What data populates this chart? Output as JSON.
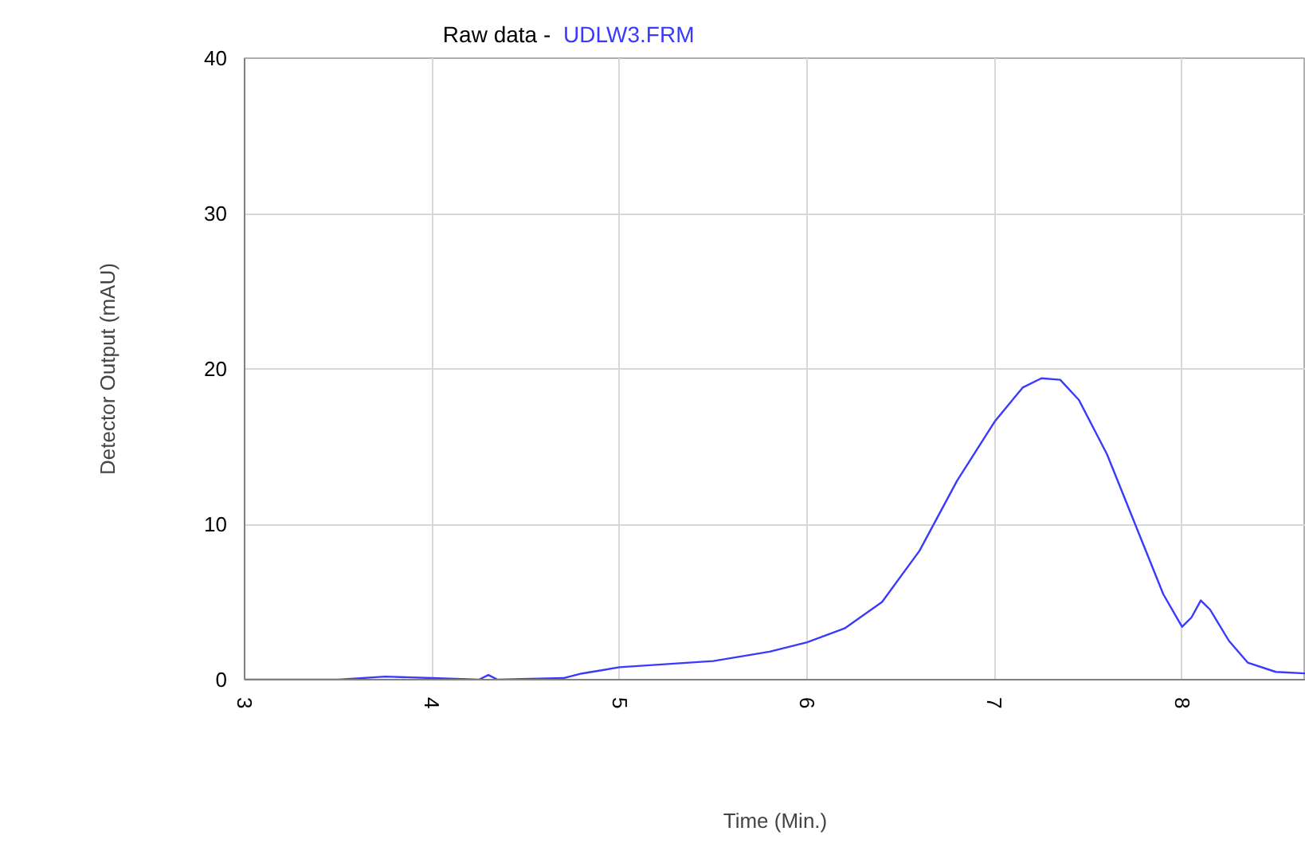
{
  "chart_data": {
    "type": "line",
    "title": "Raw data -",
    "xlabel": "Time (Min.)",
    "ylabel": "Detector Output (mAU)",
    "xlim": [
      3,
      8.66
    ],
    "xticks": [
      3,
      4,
      5,
      6,
      7,
      8
    ],
    "ylim": [
      0,
      40
    ],
    "yticks": [
      0,
      10,
      20,
      30,
      40
    ],
    "grid": true,
    "series": [
      {
        "name": "UDLW3.FRM",
        "color": "#3a3aff",
        "x": [
          3.0,
          3.5,
          3.75,
          4.0,
          4.25,
          4.3,
          4.35,
          4.7,
          4.8,
          5.0,
          5.5,
          5.8,
          6.0,
          6.2,
          6.4,
          6.6,
          6.8,
          7.0,
          7.15,
          7.25,
          7.35,
          7.45,
          7.6,
          7.75,
          7.9,
          8.0,
          8.05,
          8.1,
          8.15,
          8.25,
          8.35,
          8.5,
          8.66
        ],
        "values": [
          0,
          0,
          0.2,
          0.1,
          0,
          0.3,
          0,
          0.1,
          0.4,
          0.8,
          1.2,
          1.8,
          2.4,
          3.3,
          5.0,
          8.3,
          12.8,
          16.6,
          18.8,
          19.4,
          19.3,
          18.0,
          14.5,
          10.0,
          5.5,
          3.4,
          4.0,
          5.1,
          4.5,
          2.5,
          1.1,
          0.5,
          0.4
        ]
      }
    ]
  }
}
